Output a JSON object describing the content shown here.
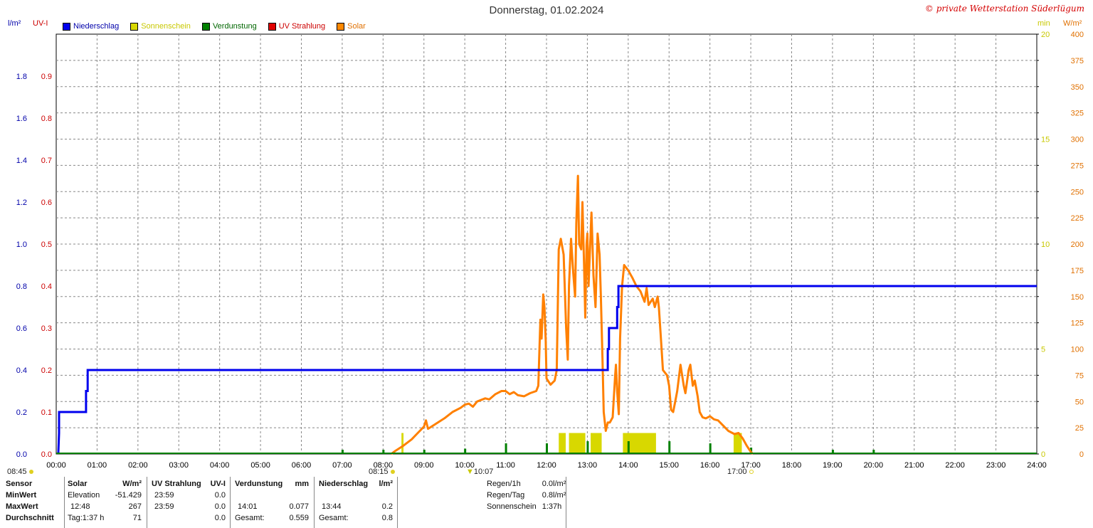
{
  "title": "Donnerstag, 01.02.2024",
  "copyright": "© private Wetterstation Süderlügum",
  "units": {
    "left1": "l/m²",
    "left2": "UV-I",
    "right1": "min",
    "right2": "W/m²"
  },
  "legend": [
    {
      "label": "Niederschlag",
      "color": "#0000ee",
      "text_color": "#0000aa"
    },
    {
      "label": "Sonnenschein",
      "color": "#d8d800",
      "text_color": "#c8c800"
    },
    {
      "label": "Verdunstung",
      "color": "#008000",
      "text_color": "#006600"
    },
    {
      "label": "UV Strahlung",
      "color": "#e00000",
      "text_color": "#cc0000"
    },
    {
      "label": "Solar",
      "color": "#ff8800",
      "text_color": "#e07000"
    }
  ],
  "colors": {
    "precip": "#0000ee",
    "sun": "#d8d800",
    "evap": "#008000",
    "uv": "#e00000",
    "solar": "#ff8000",
    "grid": "#888888"
  },
  "sun_markers": {
    "sunrise_left": "08:45",
    "sunrise": "08:15",
    "noon": "10:07",
    "sunset": "17:00"
  },
  "chart_data": {
    "type": "line",
    "title": "Donnerstag, 01.02.2024",
    "x_ticks": [
      "00:00",
      "01:00",
      "02:00",
      "03:00",
      "04:00",
      "05:00",
      "06:00",
      "07:00",
      "08:00",
      "09:00",
      "10:00",
      "11:00",
      "12:00",
      "13:00",
      "14:00",
      "15:00",
      "16:00",
      "17:00",
      "18:00",
      "19:00",
      "20:00",
      "21:00",
      "22:00",
      "23:00",
      "24:00"
    ],
    "xlim_hours": [
      0,
      24
    ],
    "axes": {
      "precip_ticks": [
        "0.0",
        "0.2",
        "0.4",
        "0.6",
        "0.8",
        "1.0",
        "1.2",
        "1.4",
        "1.6",
        "1.8"
      ],
      "precip_ylim": [
        0,
        2.0
      ],
      "uv_ticks": [
        "0.0",
        "0.1",
        "0.2",
        "0.3",
        "0.4",
        "0.5",
        "0.6",
        "0.7",
        "0.8",
        "0.9"
      ],
      "uv_ylim": [
        0,
        1.0
      ],
      "sun_ticks": [
        "0",
        "5",
        "10",
        "15",
        "20"
      ],
      "sun_ylim": [
        0,
        20
      ],
      "solar_ticks": [
        "0",
        "25",
        "50",
        "75",
        "100",
        "125",
        "150",
        "175",
        "200",
        "225",
        "250",
        "275",
        "300",
        "325",
        "350",
        "375",
        "400"
      ],
      "solar_ylim": [
        0,
        400
      ]
    },
    "grid": true,
    "legend_position": "top-left",
    "series": [
      {
        "name": "Niederschlag",
        "kind": "step",
        "points": [
          [
            0.05,
            0
          ],
          [
            0.07,
            0.1
          ],
          [
            0.07,
            0.2
          ],
          [
            0.73,
            0.2
          ],
          [
            0.73,
            0.3
          ],
          [
            0.77,
            0.3
          ],
          [
            0.77,
            0.4
          ],
          [
            13.5,
            0.4
          ],
          [
            13.5,
            0.5
          ],
          [
            13.53,
            0.5
          ],
          [
            13.53,
            0.6
          ],
          [
            13.73,
            0.6
          ],
          [
            13.73,
            0.7
          ],
          [
            13.76,
            0.7
          ],
          [
            13.76,
            0.8
          ],
          [
            24,
            0.8
          ]
        ]
      },
      {
        "name": "Sonnenschein",
        "kind": "bars",
        "bars": [
          [
            8.45,
            8.5,
            1.0
          ],
          [
            12.3,
            12.47,
            1.0
          ],
          [
            12.55,
            12.95,
            1.0
          ],
          [
            13.08,
            13.35,
            1.0
          ],
          [
            13.87,
            14.68,
            1.0
          ],
          [
            16.58,
            16.78,
            1.0
          ]
        ]
      },
      {
        "name": "Verdunstung",
        "kind": "spikes",
        "spikes": [
          [
            7.0,
            0.2
          ],
          [
            8.0,
            0.2
          ],
          [
            9.0,
            0.2
          ],
          [
            10.0,
            0.25
          ],
          [
            11.0,
            0.5
          ],
          [
            12.0,
            0.5
          ],
          [
            13.0,
            0.6
          ],
          [
            14.0,
            0.6
          ],
          [
            15.0,
            0.6
          ],
          [
            16.0,
            0.5
          ],
          [
            17.0,
            0.3
          ],
          [
            19.0,
            0.2
          ],
          [
            20.0,
            0.2
          ]
        ]
      },
      {
        "name": "Solar",
        "kind": "line",
        "points": [
          [
            8.2,
            0
          ],
          [
            8.3,
            3
          ],
          [
            8.5,
            8
          ],
          [
            8.7,
            14
          ],
          [
            8.85,
            20
          ],
          [
            9.0,
            26
          ],
          [
            9.05,
            32
          ],
          [
            9.1,
            24
          ],
          [
            9.3,
            29
          ],
          [
            9.5,
            34
          ],
          [
            9.7,
            40
          ],
          [
            9.9,
            44
          ],
          [
            10.0,
            47
          ],
          [
            10.1,
            48
          ],
          [
            10.2,
            45
          ],
          [
            10.3,
            50
          ],
          [
            10.5,
            53
          ],
          [
            10.6,
            52
          ],
          [
            10.75,
            57
          ],
          [
            10.9,
            60
          ],
          [
            11.0,
            60
          ],
          [
            11.1,
            57
          ],
          [
            11.2,
            59
          ],
          [
            11.3,
            56
          ],
          [
            11.45,
            55
          ],
          [
            11.6,
            58
          ],
          [
            11.75,
            60
          ],
          [
            11.8,
            65
          ],
          [
            11.85,
            128
          ],
          [
            11.88,
            110
          ],
          [
            11.92,
            152
          ],
          [
            11.95,
            140
          ],
          [
            11.98,
            108
          ],
          [
            12.0,
            72
          ],
          [
            12.1,
            66
          ],
          [
            12.2,
            70
          ],
          [
            12.25,
            80
          ],
          [
            12.3,
            195
          ],
          [
            12.35,
            205
          ],
          [
            12.42,
            190
          ],
          [
            12.48,
            120
          ],
          [
            12.52,
            90
          ],
          [
            12.55,
            160
          ],
          [
            12.6,
            205
          ],
          [
            12.65,
            175
          ],
          [
            12.7,
            150
          ],
          [
            12.73,
            220
          ],
          [
            12.77,
            265
          ],
          [
            12.8,
            200
          ],
          [
            12.85,
            195
          ],
          [
            12.88,
            240
          ],
          [
            12.92,
            180
          ],
          [
            12.95,
            130
          ],
          [
            12.98,
            200
          ],
          [
            13.0,
            210
          ],
          [
            13.03,
            160
          ],
          [
            13.07,
            200
          ],
          [
            13.1,
            230
          ],
          [
            13.15,
            170
          ],
          [
            13.2,
            140
          ],
          [
            13.25,
            210
          ],
          [
            13.3,
            190
          ],
          [
            13.33,
            150
          ],
          [
            13.37,
            90
          ],
          [
            13.4,
            40
          ],
          [
            13.45,
            22
          ],
          [
            13.5,
            30
          ],
          [
            13.55,
            30
          ],
          [
            13.62,
            35
          ],
          [
            13.68,
            75
          ],
          [
            13.7,
            85
          ],
          [
            13.73,
            60
          ],
          [
            13.77,
            38
          ],
          [
            13.8,
            110
          ],
          [
            13.85,
            160
          ],
          [
            13.9,
            180
          ],
          [
            14.0,
            175
          ],
          [
            14.1,
            168
          ],
          [
            14.2,
            160
          ],
          [
            14.3,
            155
          ],
          [
            14.4,
            145
          ],
          [
            14.45,
            158
          ],
          [
            14.5,
            142
          ],
          [
            14.6,
            148
          ],
          [
            14.65,
            140
          ],
          [
            14.72,
            150
          ],
          [
            14.75,
            140
          ],
          [
            14.8,
            110
          ],
          [
            14.85,
            80
          ],
          [
            14.95,
            75
          ],
          [
            15.0,
            65
          ],
          [
            15.05,
            42
          ],
          [
            15.1,
            40
          ],
          [
            15.15,
            50
          ],
          [
            15.2,
            60
          ],
          [
            15.28,
            85
          ],
          [
            15.32,
            75
          ],
          [
            15.36,
            65
          ],
          [
            15.4,
            58
          ],
          [
            15.48,
            80
          ],
          [
            15.52,
            85
          ],
          [
            15.58,
            65
          ],
          [
            15.63,
            70
          ],
          [
            15.7,
            55
          ],
          [
            15.75,
            40
          ],
          [
            15.82,
            35
          ],
          [
            15.9,
            34
          ],
          [
            16.0,
            36
          ],
          [
            16.1,
            33
          ],
          [
            16.2,
            32
          ],
          [
            16.3,
            28
          ],
          [
            16.45,
            22
          ],
          [
            16.6,
            19
          ],
          [
            16.7,
            20
          ],
          [
            16.8,
            15
          ],
          [
            16.9,
            8
          ],
          [
            17.0,
            2
          ],
          [
            17.05,
            0
          ]
        ]
      }
    ]
  },
  "stats": {
    "sensor_label": "Sensor",
    "minwert_label": "MinWert",
    "maxwert_label": "MaxWert",
    "durchschnitt_label": "Durchschnitt",
    "solar": {
      "header": "Solar",
      "unit": "W/m²",
      "min_name": "Elevation",
      "min_val": "-51.429",
      "max_time": "12:48",
      "max_val": "267",
      "avg_name": "Tag:1:37 h",
      "avg_val": "71"
    },
    "uv": {
      "header": "UV Strahlung",
      "unit": "UV-I",
      "min_time": "23:59",
      "min_val": "0.0",
      "max_time": "23:59",
      "max_val": "0.0",
      "avg_val": "0.0"
    },
    "evap": {
      "header": "Verdunstung",
      "unit": "mm",
      "max_time": "14:01",
      "max_val": "0.077",
      "total_label": "Gesamt:",
      "total_val": "0.559"
    },
    "rain": {
      "header": "Niederschlag",
      "unit": "l/m²",
      "max_time": "13:44",
      "max_val": "0.2",
      "total_label": "Gesamt:",
      "total_val": "0.8"
    },
    "summary": [
      {
        "label": "Regen/1h",
        "value": "0.0l/m²"
      },
      {
        "label": "Regen/Tag",
        "value": "0.8l/m²"
      },
      {
        "label": "Sonnenschein",
        "value": "1:37h"
      }
    ]
  }
}
